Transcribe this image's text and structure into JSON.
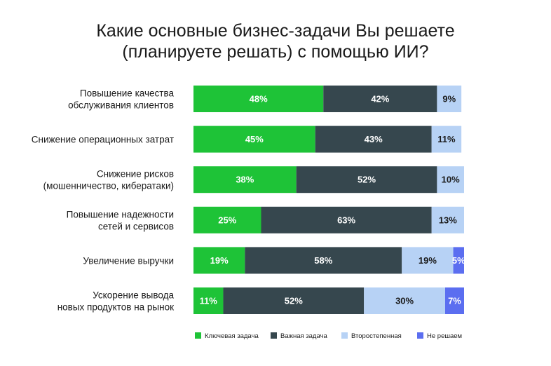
{
  "chart_data": {
    "type": "bar",
    "orientation": "horizontal",
    "stacked": true,
    "title_lines": [
      "Какие основные бизнес-задачи Вы решаете",
      "(планируете решать) с помощью ИИ?"
    ],
    "categories": [
      [
        "Повышение качества",
        "обслуживания клиентов"
      ],
      [
        "Снижение операционных затрат"
      ],
      [
        "Снижение рисков",
        "(мошенничество, кибератаки)"
      ],
      [
        "Повышение надежности",
        "сетей и сервисов"
      ],
      [
        "Увеличение выручки"
      ],
      [
        "Ускорение вывода",
        "новых продуктов на рынок"
      ]
    ],
    "series": [
      {
        "name": "Ключевая задача",
        "color": "#1ec337",
        "label_color": "#ffffff",
        "values": [
          48,
          45,
          38,
          25,
          19,
          11
        ],
        "labels": [
          "48%",
          "45%",
          "38%",
          "25%",
          "19%",
          "11%"
        ]
      },
      {
        "name": "Важная задача",
        "color": "#36474e",
        "label_color": "#ffffff",
        "values": [
          42,
          43,
          52,
          63,
          58,
          52
        ],
        "labels": [
          "42%",
          "43%",
          "52%",
          "63%",
          "58%",
          "52%"
        ]
      },
      {
        "name": "Второстепенная",
        "color": "#b7d2f5",
        "label_color": "#1a1a1a",
        "values": [
          9,
          11,
          10,
          13,
          19,
          30
        ],
        "labels": [
          "9%",
          "11%",
          "10%",
          "13%",
          "19%",
          "30%"
        ]
      },
      {
        "name": "Не решаем",
        "color": "#5b6ef0",
        "label_color": "#ffffff",
        "values": [
          0,
          0,
          0,
          0,
          5,
          7
        ],
        "labels": [
          "",
          "",
          "",
          "",
          "5%",
          "7%"
        ]
      }
    ],
    "xlim": [
      0,
      100
    ],
    "grid": false,
    "legend_position": "bottom"
  }
}
